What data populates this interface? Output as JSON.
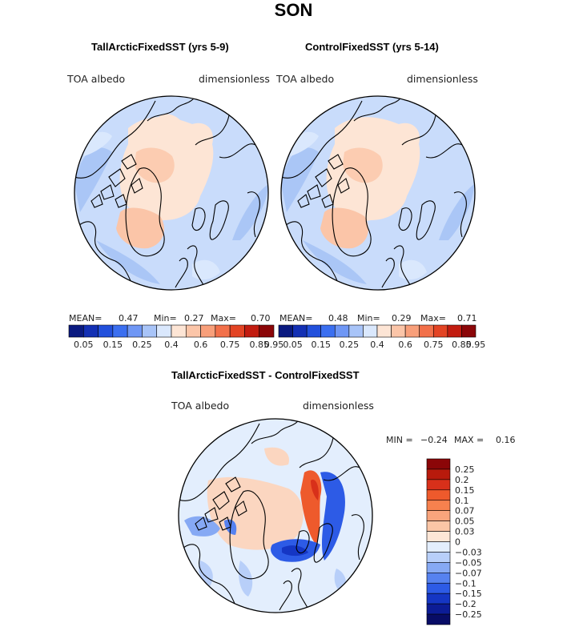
{
  "figure": {
    "title": "SON",
    "panels": [
      {
        "title": "TallArcticFixedSST (yrs 5-9)",
        "variable": "TOA albedo",
        "units": "dimensionless",
        "stats": {
          "mean_label": "MEAN=",
          "mean": "0.47",
          "min_label": "Min=",
          "min": "0.27",
          "max_label": "Max=",
          "max": "0.70"
        }
      },
      {
        "title": "ControlFixedSST (yrs 5-14)",
        "variable": "TOA albedo",
        "units": "dimensionless",
        "stats": {
          "mean_label": "MEAN=",
          "mean": "0.48",
          "min_label": "Min=",
          "min": "0.29",
          "max_label": "Max=",
          "max": "0.71"
        }
      },
      {
        "title": "TallArcticFixedSST - ControlFixedSST",
        "variable": "TOA albedo",
        "units": "dimensionless",
        "stats": {
          "min_label": "MIN =",
          "min": "−0.24",
          "max_label": "MAX =",
          "max": "0.16"
        }
      }
    ],
    "albedo_colorbar": {
      "labels": [
        "0.05",
        "0.15",
        "0.25",
        "0.4",
        "0.6",
        "0.75",
        "0.85",
        "0.95"
      ],
      "colors": [
        "#0a1a80",
        "#1330b4",
        "#2250dc",
        "#3b6ff0",
        "#6f97f5",
        "#a8c4f8",
        "#dae8fd",
        "#fde5d5",
        "#fbc5a8",
        "#f89f7a",
        "#f2704a",
        "#e34424",
        "#c21c10",
        "#8b0608"
      ]
    },
    "diff_colorbar": {
      "labels": [
        "0.25",
        "0.2",
        "0.15",
        "0.1",
        "0.07",
        "0.05",
        "0.03",
        "0",
        "−0.03",
        "−0.05",
        "−0.07",
        "−0.1",
        "−0.15",
        "−0.2",
        "−0.25"
      ],
      "colors": [
        "#8b0608",
        "#b81a0c",
        "#d8301a",
        "#ee5a2c",
        "#f7814e",
        "#f9a47c",
        "#fbc6a6",
        "#fde6d6",
        "#e3eefd",
        "#b8cff9",
        "#86a9f4",
        "#5682f0",
        "#2d5be6",
        "#1536c4",
        "#0c1c96",
        "#080c66"
      ]
    },
    "palette": {
      "ocean_low": "#c9dcfb",
      "ocean_mid": "#aac6f6",
      "pale": "#dae8fd",
      "warm_light": "#fde5d5",
      "warm_mid": "#fbc5a8",
      "neutral": "#e8eefb",
      "warm_diff": "#fbd6c0",
      "red_diff": "#ee5a2c",
      "blue_diff": "#2d5be6"
    }
  }
}
